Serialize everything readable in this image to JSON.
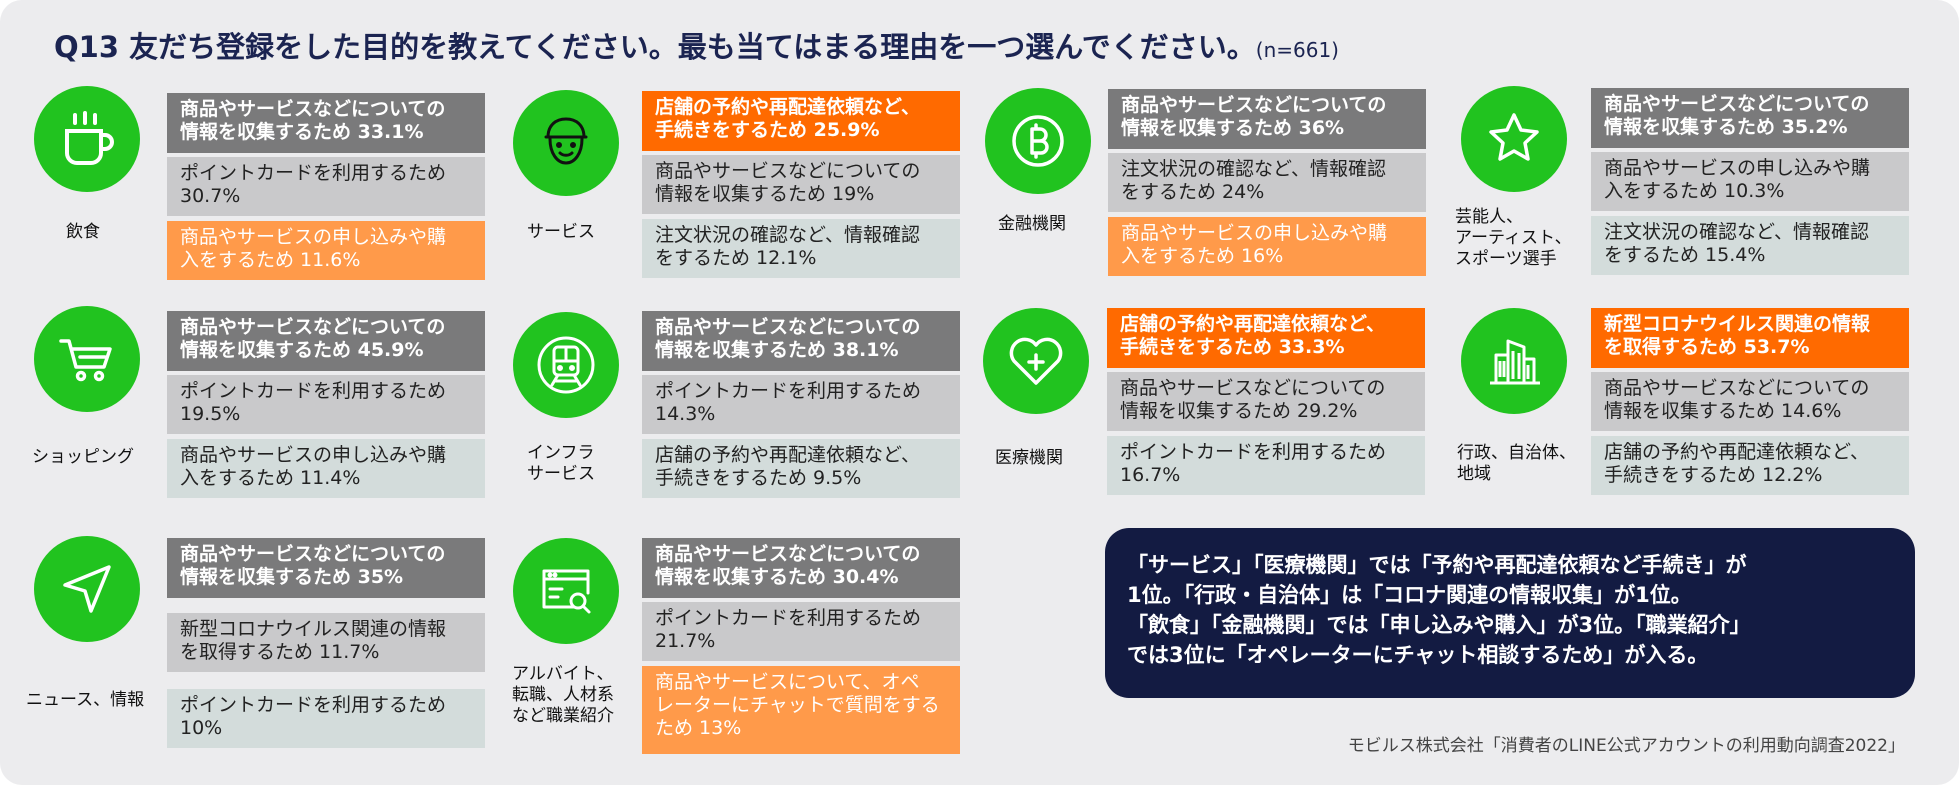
{
  "title": "Q13 友だち登録をした目的を教えてください。最も当てはまる理由を一つ選んでください。",
  "sample": "(n=661)",
  "categories": [
    {
      "label": "飲食",
      "icon": "coffee-cup-icon",
      "items": [
        {
          "text": "商品やサービスなどについての\n情報を収集するため  33.1%"
        },
        {
          "text": "ポイントカードを利用するため\n30.7%"
        },
        {
          "text": "商品やサービスの申し込みや購\n入をするため  11.6%"
        }
      ]
    },
    {
      "label": "サービス",
      "icon": "worker-face-icon",
      "items": [
        {
          "text": "店舗の予約や再配達依頼など、\n手続きをするため  25.9%"
        },
        {
          "text": "商品やサービスなどについての\n情報を収集するため  19%"
        },
        {
          "text": "注文状況の確認など、情報確認\nをするため  12.1%"
        }
      ]
    },
    {
      "label": "金融機関",
      "icon": "bitcoin-icon",
      "items": [
        {
          "text": "商品やサービスなどについての\n情報を収集するため  36%"
        },
        {
          "text": "注文状況の確認など、情報確認\nをするため  24%"
        },
        {
          "text": "商品やサービスの申し込みや購\n入をするため  16%"
        }
      ]
    },
    {
      "label": "芸能人、\nアーティスト、\nスポーツ選手",
      "icon": "star-icon",
      "items": [
        {
          "text": "商品やサービスなどについての\n情報を収集するため  35.2%"
        },
        {
          "text": "商品やサービスの申し込みや購\n入をするため  10.3%"
        },
        {
          "text": "注文状況の確認など、情報確認\nをするため  15.4%"
        }
      ]
    },
    {
      "label": "ショッピング",
      "icon": "shopping-cart-icon",
      "items": [
        {
          "text": "商品やサービスなどについての\n情報を収集するため  45.9%"
        },
        {
          "text": "ポイントカードを利用するため\n19.5%"
        },
        {
          "text": "商品やサービスの申し込みや購\n入をするため  11.4%"
        }
      ]
    },
    {
      "label": "インフラ\nサービス",
      "icon": "train-icon",
      "items": [
        {
          "text": "商品やサービスなどについての\n情報を収集するため  38.1%"
        },
        {
          "text": "ポイントカードを利用するため\n14.3%"
        },
        {
          "text": "店舗の予約や再配達依頼など、\n手続きをするため  9.5%"
        }
      ]
    },
    {
      "label": "医療機関",
      "icon": "heart-plus-icon",
      "items": [
        {
          "text": "店舗の予約や再配達依頼など、\n手続きをするため  33.3%"
        },
        {
          "text": "商品やサービスなどについての\n情報を収集するため  29.2%"
        },
        {
          "text": "ポイントカードを利用するため\n16.7%"
        }
      ]
    },
    {
      "label": "行政、自治体、\n地域",
      "icon": "buildings-icon",
      "items": [
        {
          "text": "新型コロナウイルス関連の情報\nを取得するため  53.7%"
        },
        {
          "text": "商品やサービスなどについての\n情報を収集するため  14.6%"
        },
        {
          "text": "店舗の予約や再配達依頼など、\n手続きをするため  12.2%"
        }
      ]
    },
    {
      "label": "ニュース、情報",
      "icon": "navigation-arrow-icon",
      "items": [
        {
          "text": "商品やサービスなどについての\n情報を収集するため  35%"
        },
        {
          "text": "新型コロナウイルス関連の情報\nを取得するため  11.7%"
        },
        {
          "text": "ポイントカードを利用するため\n10%"
        }
      ]
    },
    {
      "label": "アルバイト、\n転職、人材系\nなど職業紹介",
      "icon": "browser-search-icon",
      "items": [
        {
          "text": "商品やサービスなどについての\n情報を収集するため  30.4%"
        },
        {
          "text": "ポイントカードを利用するため\n21.7%"
        },
        {
          "text": "商品やサービスについて、オペ\nレーターにチャットで質問をする\nため  13%"
        }
      ]
    }
  ],
  "summary": "「サービス」「医療機関」では「予約や再配達依頼など手続き」が\n1位。「行政・自治体」は「コロナ関連の情報収集」が1位。\n「飲食」「金融機関」では「申し込みや購入」が3位。「職業紹介」\nでは3位に「オペレーターにチャット相談するため」が入る。",
  "source": "モビルス株式会社「消費者のLINE公式アカウントの利用動向調査2022」",
  "colors": {
    "icon_green": "#21c31f",
    "highlight_orange": "#ff6a00",
    "light_orange": "#ff9a4a",
    "dark_gray": "#7a7a7b",
    "summary_navy": "#131b42"
  }
}
